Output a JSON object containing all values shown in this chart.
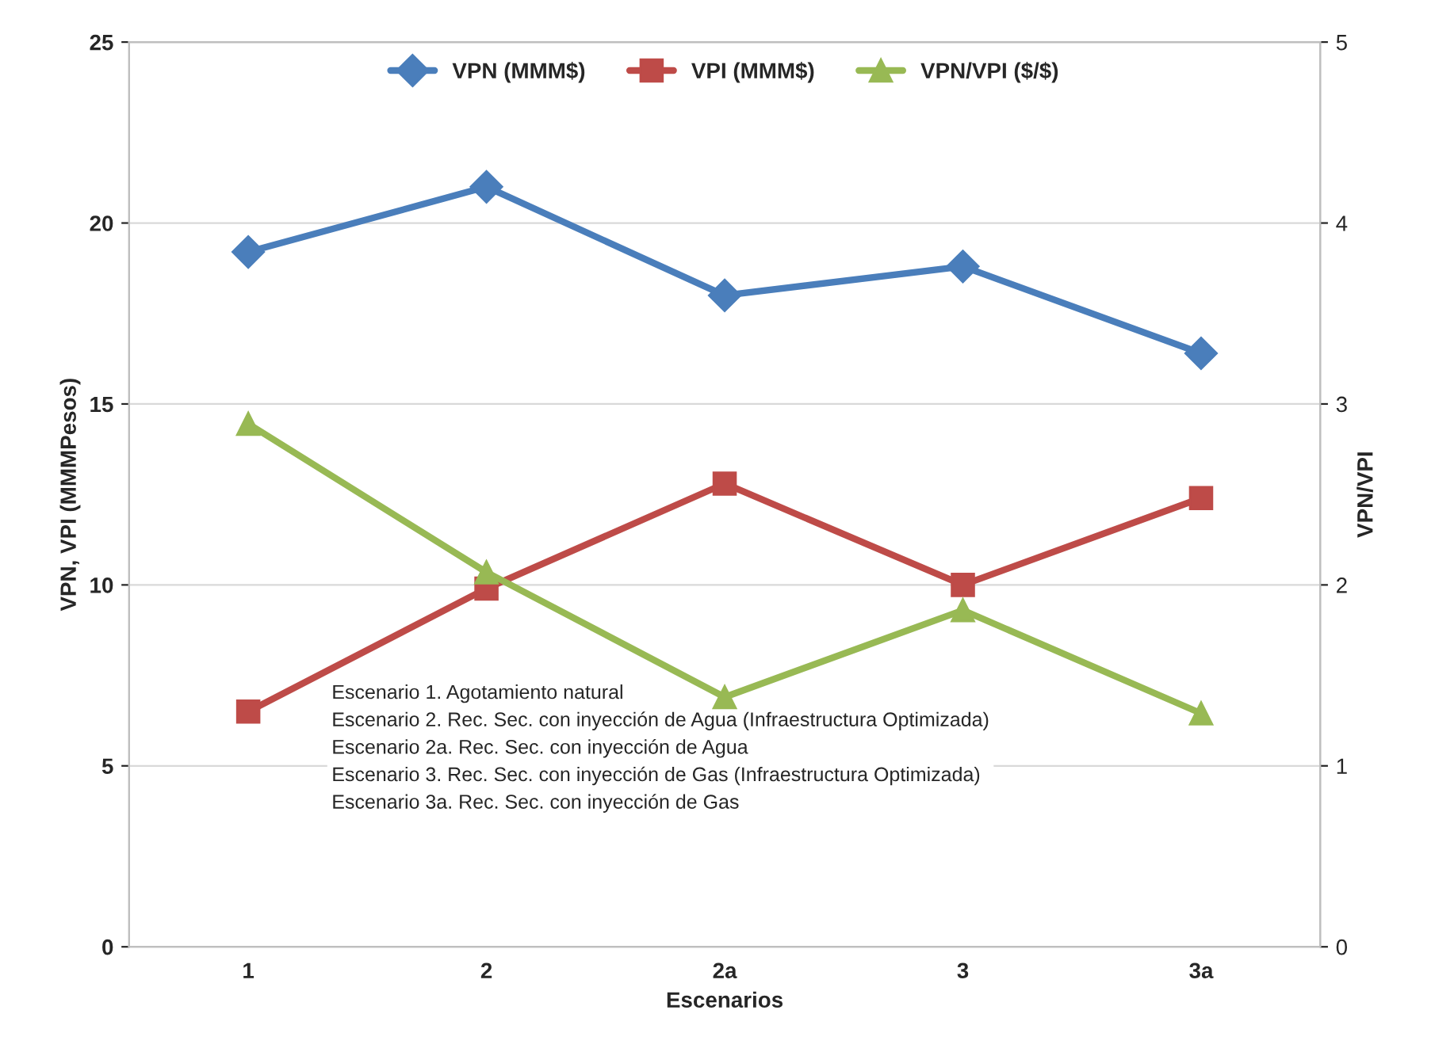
{
  "chart_data": {
    "type": "line",
    "xlabel": "Escenarios",
    "ylabel": "VPN, VPI (MMMPesos)",
    "y2label": "VPN/VPI",
    "categories": [
      "1",
      "2",
      "2a",
      "3",
      "3a"
    ],
    "series": [
      {
        "name": "VPN (MMM$)",
        "color": "#4a7ebb",
        "marker": "diamond",
        "values": [
          19.2,
          21.0,
          18.0,
          18.8,
          16.4
        ]
      },
      {
        "name": "VPI (MMM$)",
        "color": "#be4b48",
        "marker": "square",
        "values": [
          6.5,
          9.9,
          12.8,
          10.0,
          12.4
        ]
      },
      {
        "name": "VPN/VPI ($/$)",
        "color": "#98b954",
        "marker": "triangle",
        "axis": "y2",
        "values": [
          2.89,
          2.07,
          1.38,
          1.86,
          1.29
        ]
      }
    ],
    "ylim": [
      0,
      25
    ],
    "yticks": [
      0,
      5,
      10,
      15,
      20,
      25
    ],
    "y2lim": [
      0,
      5
    ],
    "y2ticks": [
      0,
      1,
      2,
      3,
      4,
      5
    ],
    "grid": "y",
    "legend": "top",
    "annotations": [
      "Escenario 1. Agotamiento natural\nEscenario 2. Rec. Sec. con inyección de Agua (Infraestructura Optimizada)\nEscenario 2a. Rec. Sec. con inyección de Agua\nEscenario 3. Rec. Sec. con inyección de Gas (Infraestructura Optimizada)\nEscenario 3a. Rec. Sec. con inyección de Gas"
    ]
  }
}
